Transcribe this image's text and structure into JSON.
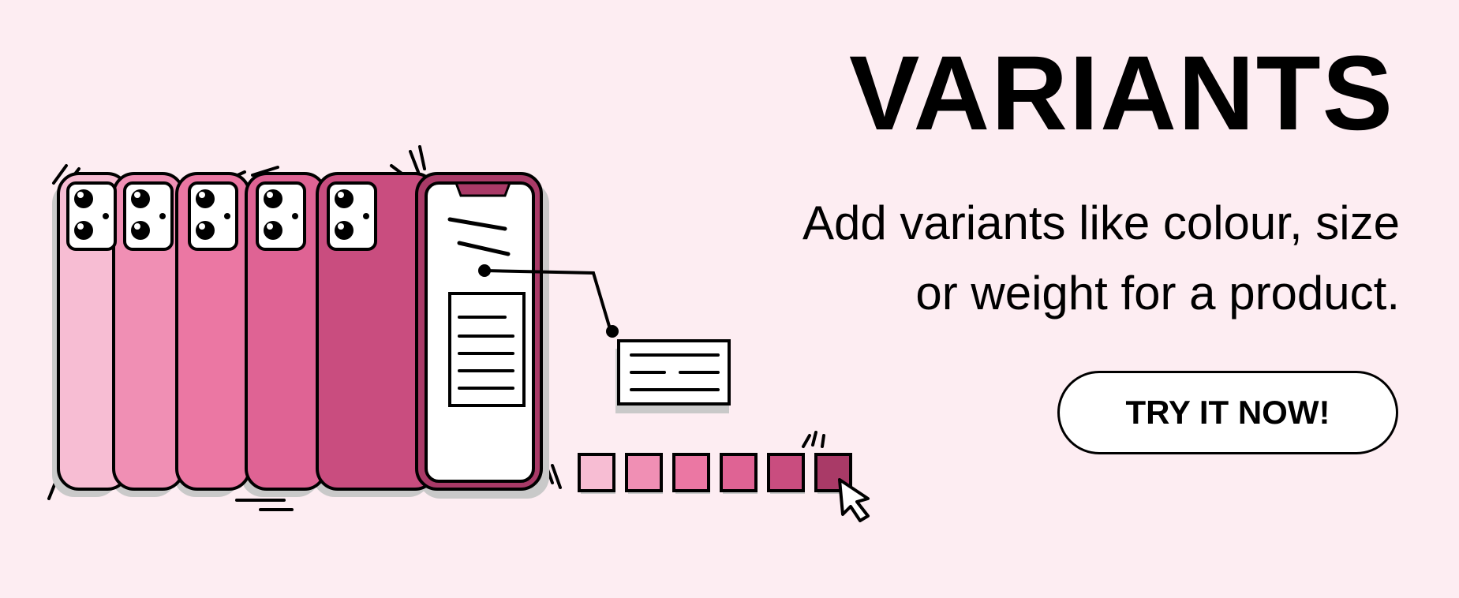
{
  "hero": {
    "title": "VARIANTS",
    "subtitle_line1": "Add variants like colour, size",
    "subtitle_line2": "or weight for a product.",
    "cta_label": "TRY IT NOW!"
  },
  "illustration": {
    "icon": "phone-variants-illustration",
    "phone_colors": [
      "#f7bdd3",
      "#f08fb4",
      "#eb77a3",
      "#df6394",
      "#c94d7f"
    ],
    "swatch_colors": [
      "#f7bdd3",
      "#f08fb4",
      "#eb77a3",
      "#df6394",
      "#c94d7f",
      "#a93a67"
    ],
    "selected_swatch_index": 5,
    "background": "#fdedf2"
  }
}
